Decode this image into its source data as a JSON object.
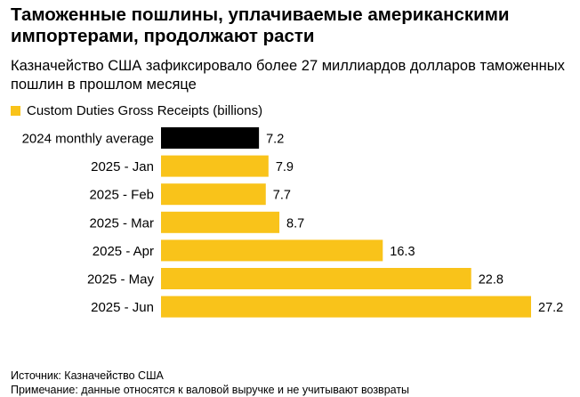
{
  "title": "Таможенные пошлины, уплачиваемые американскими импортерами, продолжают расти",
  "subtitle": "Казначейство США зафиксировало более 27 миллиардов долларов таможенных пошлин в прошлом месяце",
  "footer": {
    "source": "Источник: Казначейство США",
    "note": "Примечание: данные относятся к валовой выручке и не учитывают возвраты"
  },
  "chart_data": {
    "type": "bar",
    "orientation": "horizontal",
    "legend": [
      "Custom Duties Gross Receipts (billions)"
    ],
    "legend_placement": "top-left",
    "categories": [
      "2024 monthly average",
      "2025 - Jan",
      "2025 - Feb",
      "2025 - Mar",
      "2025 - Apr",
      "2025 - May",
      "2025 - Jun"
    ],
    "values": [
      7.2,
      7.9,
      7.7,
      8.7,
      16.3,
      22.8,
      27.2
    ],
    "value_labels": [
      "7.2",
      "7.9",
      "7.7",
      "8.7",
      "16.3",
      "22.8",
      "27.2"
    ],
    "xlim": [
      0,
      27.2
    ],
    "grid": false,
    "colors": {
      "highlight": "#000000",
      "bar": "#F9C31A"
    }
  }
}
